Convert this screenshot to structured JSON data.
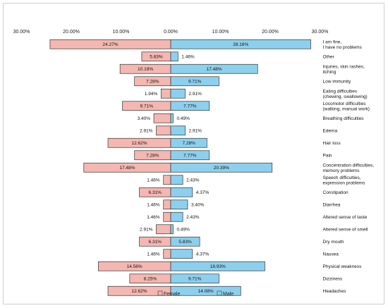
{
  "chart_data": {
    "type": "bar",
    "orientation": "horizontal-diverging",
    "title": "",
    "xlabel": "",
    "ylabel": "",
    "xlim": [
      -30,
      30
    ],
    "x_ticks": [
      {
        "value": -30,
        "label": "30.00%"
      },
      {
        "value": -20,
        "label": "20.00%"
      },
      {
        "value": -10,
        "label": "10.00%"
      },
      {
        "value": 0,
        "label": "0.00%"
      },
      {
        "value": 10,
        "label": "10.00%"
      },
      {
        "value": 20,
        "label": "20.00%"
      },
      {
        "value": 30,
        "label": "30.00%"
      }
    ],
    "legend_position": "bottom",
    "grid": false,
    "categories": [
      [
        "I am fine,",
        "I have no problems"
      ],
      [
        "Other"
      ],
      [
        "Injuries, skin rashes,",
        "itching"
      ],
      [
        "Low immunity"
      ],
      [
        "Eating difficulties",
        "(chewing, swallowing)"
      ],
      [
        "Locomotor difficulties",
        "(walking, manual work)"
      ],
      [
        "Breathing difficulties"
      ],
      [
        "Edema"
      ],
      [
        "Hair loss"
      ],
      [
        "Pain"
      ],
      [
        "Concentration difficulties,",
        "memory problems"
      ],
      [
        "Speech difficulties,",
        "expression problems"
      ],
      [
        "Constipation"
      ],
      [
        "Diarrhea"
      ],
      [
        "Altered sense of taste"
      ],
      [
        "Altered sense of smell"
      ],
      [
        "Dry mouth"
      ],
      [
        "Nausea"
      ],
      [
        "Physical weakness"
      ],
      [
        "Dizziness"
      ],
      [
        "Headaches"
      ]
    ],
    "series": [
      {
        "name": "Female",
        "color": "#f5b7b1",
        "stroke": "#333333",
        "values": [
          24.27,
          5.83,
          10.19,
          7.28,
          1.94,
          9.71,
          3.4,
          2.91,
          12.62,
          7.28,
          17.48,
          1.46,
          6.31,
          1.46,
          1.46,
          2.91,
          6.31,
          1.46,
          14.56,
          8.25,
          12.62
        ],
        "labels": [
          "24.27%",
          "5.83%",
          "10.19%",
          "7.28%",
          "1.94%",
          "9.71%",
          "3.40%",
          "2.91%",
          "12.62%",
          "7.28%",
          "17.48%",
          "1.46%",
          "6.31%",
          "1.46%",
          "1.46%",
          "2.91%",
          "6.31%",
          "1.46%",
          "14.56%",
          "8.25%",
          "12.62%"
        ]
      },
      {
        "name": "Male",
        "color": "#8dd0ee",
        "stroke": "#333333",
        "values": [
          28.16,
          1.46,
          17.48,
          9.71,
          2.91,
          7.77,
          0.49,
          2.91,
          7.28,
          7.77,
          20.39,
          2.43,
          4.37,
          3.4,
          2.43,
          0.49,
          5.83,
          4.37,
          18.93,
          9.71,
          14.08
        ],
        "labels": [
          "28.16%",
          "1.46%",
          "17.48%",
          "9.71%",
          "2.91%",
          "7.77%",
          "0.49%",
          "2.91%",
          "7.28%",
          "7.77%",
          "20.39%",
          "2.43%",
          "4.37%",
          "3.40%",
          "2.43%",
          "0.49%",
          "5.83%",
          "4.37%",
          "18.93%",
          "9.71%",
          "14.08%"
        ]
      }
    ]
  }
}
